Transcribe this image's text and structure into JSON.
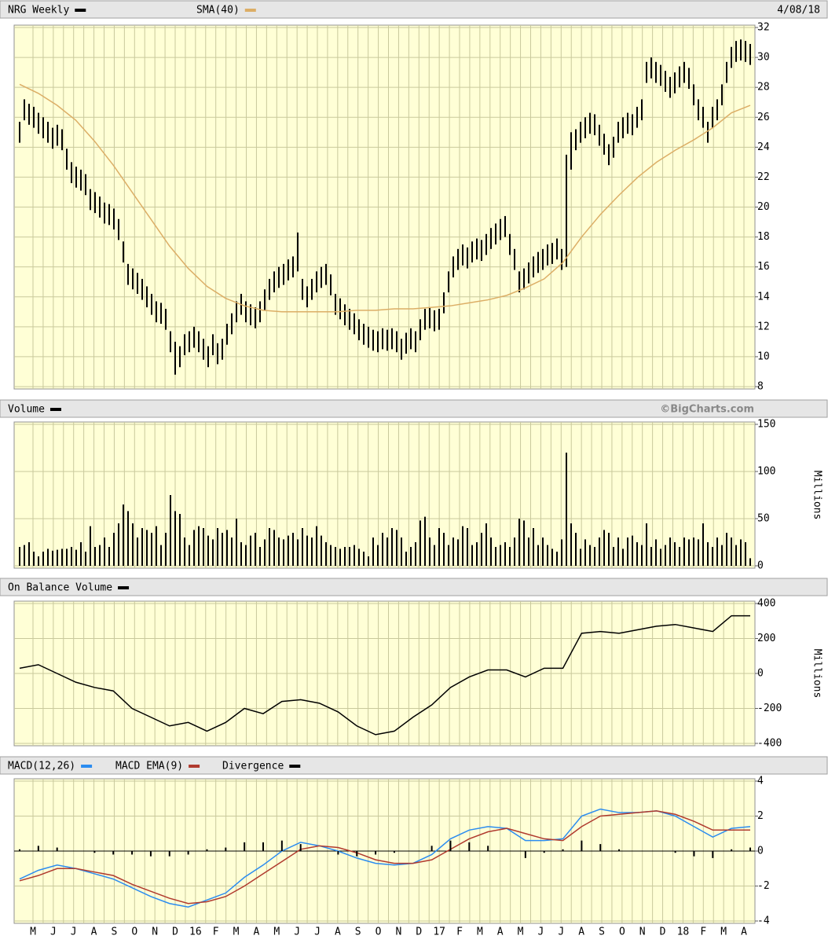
{
  "chart_data": [
    {
      "type": "ohlc",
      "date": "4/08/18",
      "ylim": [
        8,
        32
      ],
      "yticks": [
        8,
        10,
        12,
        14,
        16,
        18,
        20,
        22,
        24,
        26,
        28,
        30,
        32
      ],
      "grid": true,
      "series": [
        {
          "name": "NRG Weekly",
          "color": "#000000",
          "high": [
            25.7,
            27.2,
            26.9,
            26.7,
            26.3,
            26.0,
            25.7,
            25.3,
            25.5,
            25.2,
            23.9,
            23.0,
            22.7,
            22.5,
            22.2,
            21.2,
            21.0,
            20.7,
            20.3,
            20.2,
            19.9,
            19.2,
            17.7,
            16.2,
            15.9,
            15.6,
            15.2,
            14.7,
            14.2,
            13.7,
            13.6,
            13.2,
            11.7,
            11.0,
            10.7,
            11.5,
            11.7,
            12.0,
            11.7,
            11.2,
            10.7,
            11.5,
            10.9,
            11.2,
            12.2,
            12.9,
            13.7,
            14.2,
            13.7,
            13.5,
            13.3,
            13.7,
            14.5,
            15.2,
            15.7,
            16.0,
            16.2,
            16.5,
            16.7,
            18.3,
            15.2,
            14.7,
            15.2,
            15.7,
            16.0,
            16.2,
            15.5,
            14.2,
            13.9,
            13.5,
            13.2,
            12.9,
            12.5,
            12.2,
            12.0,
            11.8,
            11.7,
            11.9,
            11.8,
            11.9,
            11.7,
            11.2,
            11.6,
            11.9,
            11.7,
            12.5,
            13.2,
            13.3,
            13.1,
            13.2,
            14.3,
            15.7,
            16.7,
            17.2,
            17.5,
            17.3,
            17.7,
            17.9,
            17.8,
            18.2,
            18.6,
            18.9,
            19.2,
            19.4,
            18.2,
            17.2,
            15.7,
            15.9,
            16.3,
            16.7,
            17.0,
            17.2,
            17.5,
            17.6,
            17.9,
            17.2,
            23.5,
            25.0,
            25.2,
            25.7,
            26.0,
            26.3,
            26.2,
            25.5,
            24.9,
            24.2,
            24.7,
            25.7,
            26.0,
            26.3,
            26.2,
            26.7,
            27.2,
            29.7,
            30.0,
            29.7,
            29.5,
            29.1,
            28.7,
            29.0,
            29.4,
            29.7,
            29.3,
            28.2,
            27.2,
            26.7,
            25.7,
            26.7,
            27.2,
            28.2,
            29.7,
            30.7,
            31.1,
            31.2,
            31.1,
            30.9
          ],
          "low": [
            24.3,
            25.8,
            25.5,
            25.3,
            24.9,
            24.6,
            24.3,
            23.9,
            24.1,
            23.8,
            22.5,
            21.6,
            21.3,
            21.1,
            20.8,
            19.8,
            19.6,
            19.3,
            18.9,
            18.8,
            18.5,
            17.8,
            16.3,
            14.8,
            14.5,
            14.2,
            13.8,
            13.3,
            12.8,
            12.3,
            12.2,
            11.8,
            10.3,
            8.8,
            9.3,
            10.1,
            10.3,
            10.6,
            10.3,
            9.8,
            9.3,
            10.1,
            9.5,
            9.8,
            10.8,
            11.5,
            12.3,
            12.8,
            12.3,
            12.1,
            11.9,
            12.3,
            13.1,
            13.8,
            14.3,
            14.6,
            14.8,
            15.1,
            15.3,
            15.7,
            13.8,
            13.3,
            13.8,
            14.3,
            14.6,
            14.8,
            14.1,
            12.8,
            12.5,
            12.1,
            11.8,
            11.5,
            11.1,
            10.8,
            10.6,
            10.4,
            10.3,
            10.5,
            10.4,
            10.5,
            10.3,
            9.8,
            10.2,
            10.5,
            10.3,
            11.1,
            11.8,
            11.9,
            11.7,
            11.8,
            12.9,
            14.3,
            15.3,
            15.8,
            16.1,
            15.9,
            16.3,
            16.5,
            16.4,
            16.8,
            17.2,
            17.5,
            17.8,
            18.0,
            16.8,
            15.8,
            14.3,
            14.5,
            14.9,
            15.3,
            15.6,
            15.8,
            16.1,
            16.2,
            16.5,
            15.8,
            16.0,
            22.5,
            23.8,
            24.3,
            24.6,
            24.9,
            24.8,
            24.1,
            23.5,
            22.8,
            23.3,
            24.3,
            24.6,
            24.9,
            24.8,
            25.3,
            25.8,
            28.3,
            28.6,
            28.3,
            28.1,
            27.7,
            27.3,
            27.6,
            28.0,
            28.3,
            27.9,
            26.8,
            25.8,
            25.3,
            24.3,
            25.3,
            25.8,
            26.8,
            28.3,
            29.3,
            29.7,
            29.8,
            29.7,
            29.5
          ]
        },
        {
          "name": "SMA(40)",
          "color": "#dcae66",
          "values": [
            28.2,
            27.6,
            26.8,
            25.8,
            24.4,
            22.8,
            21,
            19.2,
            17.4,
            15.9,
            14.7,
            13.9,
            13.4,
            13.1,
            13.0,
            13.0,
            13.0,
            13.0,
            13.1,
            13.1,
            13.2,
            13.2,
            13.3,
            13.4,
            13.6,
            13.8,
            14.1,
            14.6,
            15.2,
            16.3,
            18.0,
            19.5,
            20.8,
            22.0,
            23.0,
            23.8,
            24.5,
            25.3,
            26.3,
            26.8
          ]
        }
      ]
    },
    {
      "type": "bar",
      "credit": "©BigCharts.com",
      "y_label": "Millions",
      "ylim": [
        0,
        150
      ],
      "yticks": [
        0,
        50,
        100,
        150
      ],
      "grid": true,
      "series": [
        {
          "name": "Volume",
          "color": "#000000",
          "values": [
            20,
            22,
            25,
            15,
            10,
            15,
            18,
            16,
            17,
            18,
            18,
            20,
            17,
            25,
            15,
            42,
            20,
            22,
            30,
            20,
            35,
            45,
            65,
            58,
            45,
            30,
            40,
            38,
            35,
            42,
            22,
            35,
            75,
            58,
            55,
            30,
            22,
            38,
            42,
            40,
            32,
            28,
            40,
            35,
            38,
            30,
            50,
            25,
            22,
            32,
            35,
            20,
            28,
            40,
            38,
            30,
            28,
            32,
            35,
            28,
            40,
            32,
            30,
            42,
            32,
            25,
            22,
            20,
            18,
            20,
            20,
            22,
            18,
            15,
            10,
            30,
            22,
            35,
            30,
            40,
            38,
            30,
            15,
            20,
            25,
            48,
            52,
            30,
            22,
            40,
            35,
            22,
            30,
            28,
            42,
            40,
            22,
            25,
            35,
            45,
            30,
            20,
            22,
            25,
            20,
            30,
            50,
            48,
            30,
            40,
            22,
            30,
            22,
            18,
            15,
            28,
            120,
            45,
            35,
            18,
            28,
            22,
            20,
            30,
            38,
            35,
            20,
            30,
            18,
            30,
            32,
            25,
            22,
            45,
            20,
            28,
            18,
            22,
            30,
            25,
            20,
            30,
            28,
            30,
            28,
            45,
            25,
            20,
            30,
            22,
            35,
            30,
            22,
            28,
            25,
            8
          ]
        }
      ]
    },
    {
      "type": "line",
      "y_label": "Millions",
      "ylim": [
        -400,
        400
      ],
      "yticks": [
        -400,
        -200,
        0,
        200,
        400
      ],
      "grid": true,
      "series": [
        {
          "name": "On Balance Volume",
          "color": "#000000",
          "values": [
            30,
            50,
            0,
            -50,
            -80,
            -100,
            -200,
            -250,
            -300,
            -280,
            -330,
            -280,
            -200,
            -230,
            -160,
            -150,
            -170,
            -220,
            -300,
            -350,
            -330,
            -250,
            -180,
            -80,
            -20,
            20,
            20,
            -20,
            30,
            30,
            230,
            240,
            230,
            250,
            270,
            280,
            260,
            240,
            330,
            330
          ]
        }
      ]
    },
    {
      "type": "macd",
      "ylim": [
        -4,
        4
      ],
      "yticks": [
        -4,
        -2,
        0,
        2,
        4
      ],
      "grid": true,
      "x_labels": [
        "M",
        "J",
        "J",
        "A",
        "S",
        "O",
        "N",
        "D",
        "16",
        "F",
        "M",
        "A",
        "M",
        "J",
        "J",
        "A",
        "S",
        "O",
        "N",
        "D",
        "17",
        "F",
        "M",
        "A",
        "M",
        "J",
        "J",
        "A",
        "S",
        "O",
        "N",
        "D",
        "18",
        "F",
        "M",
        "A"
      ],
      "series": [
        {
          "name": "MACD(12,26)",
          "color": "#2b8cf0",
          "values": [
            -1.6,
            -1.1,
            -0.8,
            -1.0,
            -1.3,
            -1.6,
            -2.1,
            -2.6,
            -3.0,
            -3.2,
            -2.8,
            -2.4,
            -1.5,
            -0.8,
            0.0,
            0.5,
            0.3,
            0.0,
            -0.4,
            -0.7,
            -0.8,
            -0.7,
            -0.2,
            0.7,
            1.2,
            1.4,
            1.3,
            0.6,
            0.6,
            0.7,
            2.0,
            2.4,
            2.2,
            2.2,
            2.3,
            2.0,
            1.4,
            0.8,
            1.3,
            1.4
          ]
        },
        {
          "name": "MACD EMA(9)",
          "color": "#b03a2e",
          "values": [
            -1.7,
            -1.4,
            -1.0,
            -1.0,
            -1.2,
            -1.4,
            -1.9,
            -2.3,
            -2.7,
            -3.0,
            -2.9,
            -2.6,
            -2.0,
            -1.3,
            -0.6,
            0.1,
            0.3,
            0.2,
            -0.1,
            -0.5,
            -0.7,
            -0.7,
            -0.5,
            0.1,
            0.7,
            1.1,
            1.3,
            1.0,
            0.7,
            0.6,
            1.4,
            2.0,
            2.1,
            2.2,
            2.3,
            2.1,
            1.7,
            1.2,
            1.2,
            1.2
          ]
        },
        {
          "name": "Divergence",
          "color": "#000000",
          "type": "bar",
          "values": [
            0.1,
            0.3,
            0.2,
            0,
            -0.1,
            -0.2,
            -0.2,
            -0.3,
            -0.3,
            -0.2,
            0.1,
            0.2,
            0.5,
            0.5,
            0.6,
            0.4,
            0,
            -0.2,
            -0.3,
            -0.2,
            -0.1,
            0,
            0.3,
            0.6,
            0.5,
            0.3,
            0,
            -0.4,
            -0.1,
            0.1,
            0.6,
            0.4,
            0.1,
            0,
            0,
            -0.1,
            -0.3,
            -0.4,
            0.1,
            0.2
          ]
        }
      ]
    }
  ]
}
